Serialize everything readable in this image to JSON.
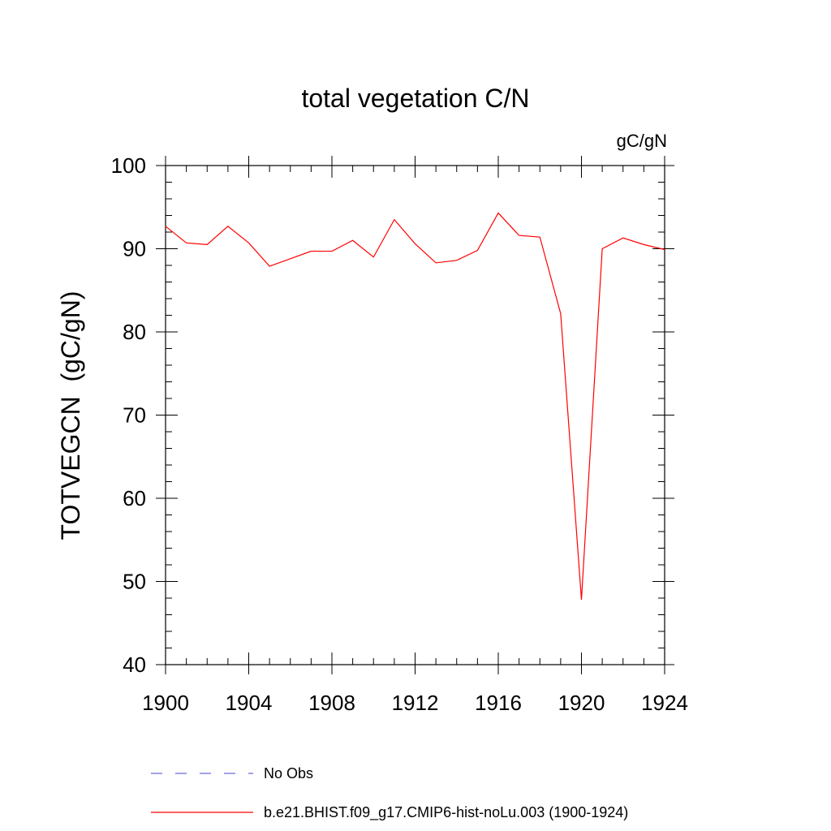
{
  "chart_data": {
    "type": "line",
    "title": "total vegetation C/N",
    "units_label": "gC/gN",
    "ylabel": "TOTVEGCN  (gC/gN)",
    "xlabel": "",
    "xlim": [
      1900,
      1924
    ],
    "ylim": [
      40,
      100
    ],
    "x_ticks": [
      "1900",
      "1904",
      "1908",
      "1912",
      "1916",
      "1920",
      "1924"
    ],
    "y_ticks": [
      "40",
      "50",
      "60",
      "70",
      "80",
      "90",
      "100"
    ],
    "grid": false,
    "legend_placement": "bottom",
    "series": [
      {
        "name": "No Obs",
        "color": "#6b6bd6",
        "style": "dashed",
        "x": [],
        "values": []
      },
      {
        "name": "b.e21.BHIST.f09_g17.CMIP6-hist-noLu.003 (1900-1924)",
        "color": "#ff0000",
        "style": "solid",
        "x": [
          1900,
          1901,
          1902,
          1903,
          1904,
          1905,
          1906,
          1907,
          1908,
          1909,
          1910,
          1911,
          1912,
          1913,
          1914,
          1915,
          1916,
          1917,
          1918,
          1919,
          1920,
          1921,
          1922,
          1923,
          1924
        ],
        "values": [
          92.7,
          90.7,
          90.5,
          92.7,
          90.7,
          87.9,
          88.8,
          89.7,
          89.7,
          91.0,
          89.0,
          93.5,
          90.6,
          88.3,
          88.6,
          89.8,
          94.3,
          91.6,
          91.4,
          82.2,
          47.8,
          90.0,
          91.3,
          90.5,
          89.9
        ]
      }
    ]
  }
}
